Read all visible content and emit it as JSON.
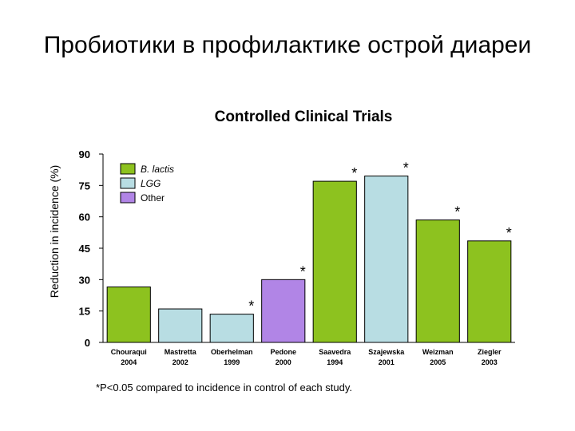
{
  "slide": {
    "title": "Пробиотики в профилактике острой диареи"
  },
  "chart_data": {
    "type": "bar",
    "title": "Controlled Clinical Trials",
    "xlabel": "",
    "ylabel": "Reduction in incidence (%)",
    "ylim": [
      0,
      90
    ],
    "yticks": [
      0,
      15,
      30,
      45,
      60,
      75,
      90
    ],
    "grid": false,
    "legend_position": "top-left",
    "legend": [
      {
        "name": "B. lactis",
        "color": "#8dc21f"
      },
      {
        "name": "LGG",
        "color": "#b8dde3"
      },
      {
        "name": "Other",
        "color": "#b185e6"
      }
    ],
    "bars": [
      {
        "author": "Chouraqui",
        "year": "2004",
        "value": 26.5,
        "group": "B. lactis",
        "significant": false
      },
      {
        "author": "Mastretta",
        "year": "2002",
        "value": 16,
        "group": "LGG",
        "significant": false
      },
      {
        "author": "Oberhelman",
        "year": "1999",
        "value": 13.5,
        "group": "LGG",
        "significant": true
      },
      {
        "author": "Pedone",
        "year": "2000",
        "value": 30,
        "group": "Other",
        "significant": true
      },
      {
        "author": "Saavedra",
        "year": "1994",
        "value": 77,
        "group": "B. lactis",
        "significant": true
      },
      {
        "author": "Szajewska",
        "year": "2001",
        "value": 79.5,
        "group": "LGG",
        "significant": true
      },
      {
        "author": "Weizman",
        "year": "2005",
        "value": 58.5,
        "group": "B. lactis",
        "significant": true
      },
      {
        "author": "Ziegler",
        "year": "2003",
        "value": 48.5,
        "group": "B. lactis",
        "significant": true
      }
    ],
    "significance_marker": "*",
    "footnote": "*P<0.05 compared to incidence in control of each study."
  }
}
